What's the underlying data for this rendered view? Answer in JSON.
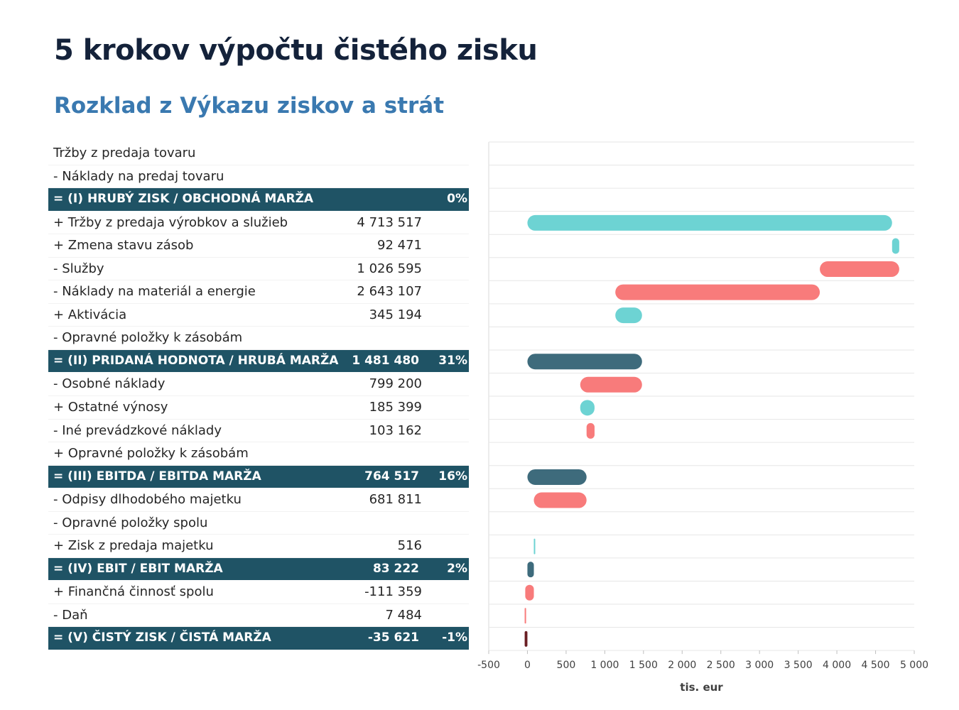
{
  "title": "5 krokov výpočtu čistého zisku",
  "subtitle": "Rozklad z Výkazu ziskov a strát",
  "rows": [
    {
      "label": "Tržby z predaja tovaru",
      "value": "",
      "pct": "",
      "total": false
    },
    {
      "label": "- Náklady na predaj tovaru",
      "value": "",
      "pct": "",
      "total": false
    },
    {
      "label": "= (I) HRUBÝ ZISK / OBCHODNÁ MARŽA",
      "value": "",
      "pct": "0%",
      "total": true
    },
    {
      "label": "+ Tržby z predaja výrobkov a služieb",
      "value": "4 713 517",
      "pct": "",
      "total": false
    },
    {
      "label": "+ Zmena stavu zásob",
      "value": "92 471",
      "pct": "",
      "total": false
    },
    {
      "label": "- Služby",
      "value": "1 026 595",
      "pct": "",
      "total": false
    },
    {
      "label": "- Náklady na materiál a energie",
      "value": "2 643 107",
      "pct": "",
      "total": false
    },
    {
      "label": "+ Aktivácia",
      "value": "345 194",
      "pct": "",
      "total": false
    },
    {
      "label": "- Opravné položky k zásobám",
      "value": "",
      "pct": "",
      "total": false
    },
    {
      "label": "= (II) PRIDANÁ HODNOTA / HRUBÁ MARŽA",
      "value": "1 481 480",
      "pct": "31%",
      "total": true
    },
    {
      "label": "- Osobné náklady",
      "value": "799 200",
      "pct": "",
      "total": false
    },
    {
      "label": "+ Ostatné výnosy",
      "value": "185 399",
      "pct": "",
      "total": false
    },
    {
      "label": "- Iné prevádzkové náklady",
      "value": "103 162",
      "pct": "",
      "total": false
    },
    {
      "label": "+ Opravné položky k zásobám",
      "value": "",
      "pct": "",
      "total": false
    },
    {
      "label": "= (III) EBITDA / EBITDA MARŽA",
      "value": "764 517",
      "pct": "16%",
      "total": true
    },
    {
      "label": "- Odpisy dlhodobého majetku",
      "value": "681 811",
      "pct": "",
      "total": false
    },
    {
      "label": "- Opravné položky spolu",
      "value": "",
      "pct": "",
      "total": false
    },
    {
      "label": "+ Zisk z predaja majetku",
      "value": "516",
      "pct": "",
      "total": false
    },
    {
      "label": "= (IV) EBIT / EBIT MARŽA",
      "value": "83 222",
      "pct": "2%",
      "total": true
    },
    {
      "label": "+ Finančná činnosť spolu",
      "value": "-111 359",
      "pct": "",
      "total": false
    },
    {
      "label": "- Daň",
      "value": "7 484",
      "pct": "",
      "total": false
    },
    {
      "label": "= (V) ČISTÝ ZISK / ČISTÁ MARŽA",
      "value": "-35 621",
      "pct": "-1%",
      "total": true
    }
  ],
  "colors": {
    "increase": "#6dd3d3",
    "decrease": "#f87b7b",
    "total": "#3e6b7c",
    "final": "#6a1f24",
    "table_header": "#1f5365",
    "title": "#14223a",
    "subtitle": "#3a79b0"
  },
  "chart_data": {
    "type": "bar",
    "orientation": "horizontal-waterfall",
    "x_unit_label": "tis. eur",
    "xlim": [
      -500,
      5000
    ],
    "x_ticks": [
      -500,
      0,
      500,
      1000,
      1500,
      2000,
      2500,
      3000,
      3500,
      4000,
      4500,
      5000
    ],
    "x_tick_labels": [
      "-500",
      "0",
      "500",
      "1 000",
      "1 500",
      "2 000",
      "2 500",
      "3 000",
      "3 500",
      "4 000",
      "4 500",
      "5 000"
    ],
    "grid": "horizontal",
    "bars": [
      {
        "start": 0,
        "end": 0,
        "kind": "total"
      },
      {
        "start": 0,
        "end": 0,
        "kind": "decrease"
      },
      {
        "start": 0,
        "end": 0,
        "kind": "total"
      },
      {
        "start": 0,
        "end": 4713.517,
        "kind": "increase"
      },
      {
        "start": 4713.517,
        "end": 4805.988,
        "kind": "increase"
      },
      {
        "start": 3779.393,
        "end": 4805.988,
        "kind": "decrease"
      },
      {
        "start": 1136.286,
        "end": 3779.393,
        "kind": "decrease"
      },
      {
        "start": 1136.286,
        "end": 1481.48,
        "kind": "increase"
      },
      {
        "start": 1481.48,
        "end": 1481.48,
        "kind": "decrease"
      },
      {
        "start": 0,
        "end": 1481.48,
        "kind": "total"
      },
      {
        "start": 682.28,
        "end": 1481.48,
        "kind": "decrease"
      },
      {
        "start": 682.28,
        "end": 867.679,
        "kind": "increase"
      },
      {
        "start": 764.517,
        "end": 867.679,
        "kind": "decrease"
      },
      {
        "start": 764.517,
        "end": 764.517,
        "kind": "increase"
      },
      {
        "start": 0,
        "end": 764.517,
        "kind": "total"
      },
      {
        "start": 82.706,
        "end": 764.517,
        "kind": "decrease"
      },
      {
        "start": 82.706,
        "end": 82.706,
        "kind": "decrease"
      },
      {
        "start": 82.706,
        "end": 83.222,
        "kind": "increase"
      },
      {
        "start": 0,
        "end": 83.222,
        "kind": "total"
      },
      {
        "start": -28.137,
        "end": 83.222,
        "kind": "decrease"
      },
      {
        "start": -35.621,
        "end": -28.137,
        "kind": "decrease"
      },
      {
        "start": -35.621,
        "end": 0,
        "kind": "final"
      }
    ]
  }
}
